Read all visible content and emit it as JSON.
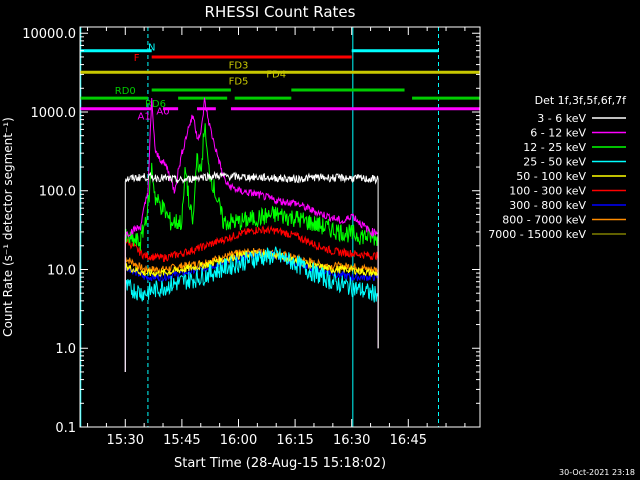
{
  "chart_data": {
    "type": "line",
    "title": "RHESSI Count Rates",
    "xlabel": "Start Time (28-Aug-15 15:18:02)",
    "ylabel": "Count Rate (s⁻¹ detector segment⁻¹)",
    "x_ticks": [
      "15:30",
      "15:45",
      "16:00",
      "16:15",
      "16:30",
      "16:45"
    ],
    "x_tick_minutes": [
      30,
      45,
      60,
      75,
      90,
      105
    ],
    "xlim_minutes": [
      18,
      124
    ],
    "y_scale": "log",
    "y_ticks": [
      "0.1",
      "1.0",
      "10.0",
      "100.0",
      "1000.0",
      "10000.0"
    ],
    "y_tick_values": [
      0.1,
      1,
      10,
      100,
      1000,
      10000
    ],
    "ylim": [
      0.1,
      12000
    ],
    "legend_title": "Det 1f,3f,5f,6f,7f",
    "legend_position": "right",
    "timestamp": "30-Oct-2021 23:18",
    "series": [
      {
        "name": "3 - 6 keV",
        "color": "#ffffff",
        "x_minutes": [
          30,
          35,
          40,
          45,
          50,
          55,
          60,
          65,
          70,
          75,
          80,
          85,
          90,
          95,
          97
        ],
        "values": [
          140,
          150,
          145,
          135,
          150,
          155,
          150,
          148,
          145,
          140,
          148,
          146,
          145,
          140,
          140
        ]
      },
      {
        "name": "6 - 12 keV",
        "color": "#ff00ff",
        "x_minutes": [
          30,
          34,
          36,
          37,
          38,
          41,
          43,
          45,
          47,
          48,
          49,
          50,
          51,
          52,
          53,
          56,
          57,
          60,
          65,
          70,
          75,
          80,
          85,
          88,
          90,
          92,
          95,
          97
        ],
        "values": [
          28,
          35,
          100,
          1400,
          300,
          200,
          100,
          300,
          700,
          900,
          500,
          500,
          1400,
          800,
          500,
          150,
          120,
          100,
          90,
          75,
          70,
          55,
          45,
          40,
          50,
          40,
          30,
          30
        ]
      },
      {
        "name": "12 - 25 keV",
        "color": "#00ff00",
        "x_minutes": [
          30,
          34,
          36,
          37,
          38,
          40,
          42,
          45,
          46,
          47,
          48,
          49,
          50,
          51,
          52,
          55,
          56,
          60,
          65,
          70,
          75,
          80,
          85,
          90,
          95,
          97
        ],
        "values": [
          25,
          22,
          60,
          200,
          80,
          60,
          40,
          40,
          200,
          60,
          40,
          300,
          150,
          700,
          200,
          60,
          40,
          40,
          45,
          50,
          45,
          38,
          32,
          28,
          26,
          25
        ]
      },
      {
        "name": "25 - 50 keV",
        "color": "#00ffff",
        "x_minutes": [
          30,
          35,
          40,
          45,
          50,
          55,
          60,
          65,
          70,
          75,
          80,
          85,
          90,
          95,
          97
        ],
        "values": [
          6,
          5,
          6,
          7,
          8,
          10,
          12,
          14,
          15,
          12,
          9,
          7,
          6,
          5,
          5
        ]
      },
      {
        "name": "50 - 100 keV",
        "color": "#ffff00",
        "x_minutes": [
          30,
          35,
          40,
          45,
          50,
          55,
          60,
          65,
          70,
          75,
          80,
          85,
          90,
          95,
          97
        ],
        "values": [
          11,
          9,
          9,
          10,
          11,
          13,
          15,
          16,
          15,
          13,
          11,
          10,
          10,
          9,
          9
        ]
      },
      {
        "name": "100 - 300 keV",
        "color": "#ff0000",
        "x_minutes": [
          30,
          35,
          40,
          45,
          50,
          55,
          60,
          65,
          70,
          75,
          80,
          85,
          90,
          95,
          97
        ],
        "values": [
          24,
          15,
          14,
          16,
          19,
          23,
          28,
          32,
          31,
          27,
          21,
          17,
          16,
          15,
          15
        ]
      },
      {
        "name": "300 - 800 keV",
        "color": "#0000ff",
        "x_minutes": [
          30,
          35,
          40,
          45,
          50,
          55,
          60,
          65,
          70,
          75,
          80,
          85,
          90,
          95,
          97
        ],
        "values": [
          11,
          8,
          8,
          9,
          10,
          12,
          14,
          16,
          15,
          12,
          10,
          9,
          8,
          8,
          8
        ]
      },
      {
        "name": "800 - 7000 keV",
        "color": "#ff8c00",
        "x_minutes": [
          30,
          35,
          40,
          45,
          50,
          55,
          60,
          65,
          70,
          75,
          80,
          85,
          90,
          95,
          97
        ],
        "values": [
          14,
          10,
          10,
          11,
          12,
          14,
          16,
          17,
          16,
          14,
          12,
          11,
          11,
          10,
          10
        ]
      },
      {
        "name": "7000 - 15000 keV",
        "color": "#808000",
        "x_minutes": [],
        "values": []
      }
    ],
    "flags": [
      {
        "label": "N",
        "color": "#00ffff",
        "y": 6000,
        "segments": [
          [
            18,
            37
          ],
          [
            90,
            113
          ]
        ],
        "label_at": 37,
        "label_y": 6800
      },
      {
        "label": "F",
        "color": "#ff0000",
        "y": 5000,
        "segments": [
          [
            37,
            90
          ]
        ],
        "label_at": 33,
        "label_y": 5000
      },
      {
        "label": "FD3",
        "color": "#c8c800",
        "y": 3200,
        "segments": [
          [
            18,
            124
          ]
        ],
        "label_at": 60,
        "label_y": 4000
      },
      {
        "label": "FD4",
        "color": "#c8c800",
        "y": 3100,
        "segments": [],
        "label_at": 70,
        "label_y": 3100
      },
      {
        "label": "FD5",
        "color": "#c8c800",
        "y": 2500,
        "segments": [],
        "label_at": 60,
        "label_y": 2500
      },
      {
        "label": "RD0",
        "color": "#00cc00",
        "y": 1900,
        "segments": [
          [
            37,
            58
          ],
          [
            74,
            104
          ]
        ],
        "label_at": 30,
        "label_y": 1900
      },
      {
        "label": "RD6",
        "color": "#00cc00",
        "y": 1500,
        "segments": [
          [
            18,
            36
          ],
          [
            44,
            57
          ],
          [
            59,
            74
          ],
          [
            106,
            124
          ]
        ],
        "label_at": 38,
        "label_y": 1300
      },
      {
        "label": "A0",
        "color": "#ff00ff",
        "y": 1000,
        "segments": [],
        "label_at": 40,
        "label_y": 1050
      },
      {
        "label": "A1",
        "color": "#ff00ff",
        "y": 1100,
        "segments": [
          [
            18,
            37
          ],
          [
            40,
            44
          ],
          [
            49,
            54
          ],
          [
            58,
            124
          ]
        ],
        "label_at": 35,
        "label_y": 900
      }
    ],
    "vlines": [
      {
        "minute": 18.2,
        "color": "#00ffff",
        "style": "solid"
      },
      {
        "minute": 36,
        "color": "#00ffff",
        "style": "dashed"
      },
      {
        "minute": 90.3,
        "color": "#00ffff",
        "style": "solid"
      },
      {
        "minute": 113,
        "color": "#00ffff",
        "style": "dashed"
      }
    ]
  }
}
